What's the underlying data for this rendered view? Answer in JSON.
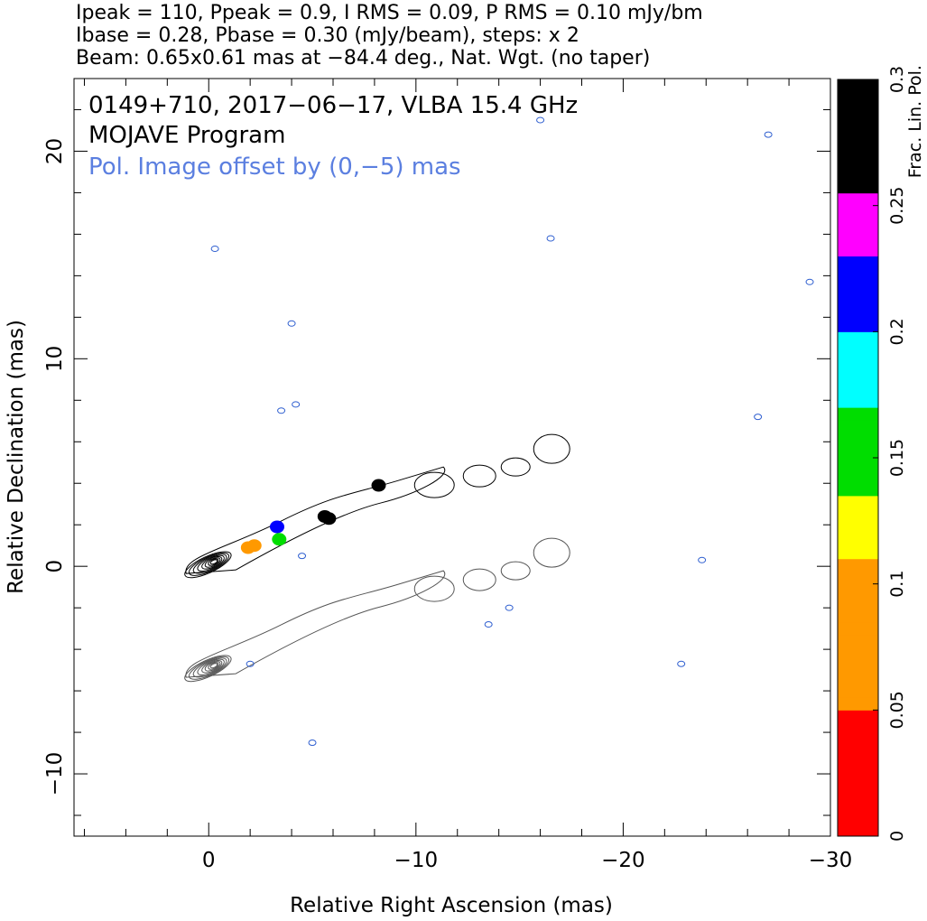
{
  "header": {
    "line1": "Ipeak = 110, Ppeak = 0.9, I RMS = 0.09, P RMS = 0.10 mJy/bm",
    "line2": "Ibase = 0.28, Pbase = 0.30 (mJy/beam), steps: x 2",
    "line3": "Beam: 0.65x0.61 mas at −84.4 deg., Nat. Wgt. (no taper)"
  },
  "annotations": {
    "source": "0149+710, 2017−06−17, VLBA 15.4 GHz",
    "program": "MOJAVE Program",
    "pol_offset": "Pol. Image offset by (0,−5) mas"
  },
  "colors": {
    "total_intensity_contour": "#000000",
    "offset_contour": "#555555",
    "pol_contour": "#2f5fd0",
    "pol_text": "#5b7fe0",
    "frame": "#000000"
  },
  "chart_data": {
    "type": "heatmap",
    "title": "",
    "xlabel": "Relative Right Ascension (mas)",
    "ylabel": "Relative Declination (mas)",
    "xlim": [
      6.5,
      -30
    ],
    "ylim": [
      -13,
      23.5
    ],
    "x_ticks": [
      0,
      -10,
      -20,
      -30
    ],
    "x_tick_labels": [
      "0",
      "−10",
      "−20",
      "−30"
    ],
    "y_ticks": [
      -10,
      0,
      10,
      20
    ],
    "y_tick_labels": [
      "−10",
      "0",
      "10",
      "20"
    ],
    "colorbar": {
      "label": "Frac. Lin. Pol.",
      "range": [
        0,
        0.3
      ],
      "ticks": [
        0,
        0.05,
        0.1,
        0.15,
        0.2,
        0.25,
        0.3
      ],
      "tick_labels": [
        "0",
        "0.05",
        "0.1",
        "0.15",
        "0.2",
        "0.25",
        "0.3"
      ]
    },
    "intensity_contour_levels_mJy": [
      0.28,
      0.56,
      1.12,
      2.24,
      4.48,
      8.96,
      17.92,
      35.84,
      71.68
    ],
    "core_position_mas": [
      0,
      0
    ],
    "fractional_polarization_spots": [
      {
        "x": -2.2,
        "y": 1.0,
        "value": 0.1
      },
      {
        "x": -1.9,
        "y": 0.9,
        "value": 0.05
      },
      {
        "x": -3.3,
        "y": 1.9,
        "value": 0.22
      },
      {
        "x": -3.4,
        "y": 1.3,
        "value": 0.16
      },
      {
        "x": -5.6,
        "y": 2.4,
        "value": 0.26
      },
      {
        "x": -5.8,
        "y": 2.3,
        "value": 0.3
      },
      {
        "x": -8.2,
        "y": 3.9,
        "value": 0.3
      }
    ],
    "grid": false,
    "legend": "colorbar right"
  }
}
